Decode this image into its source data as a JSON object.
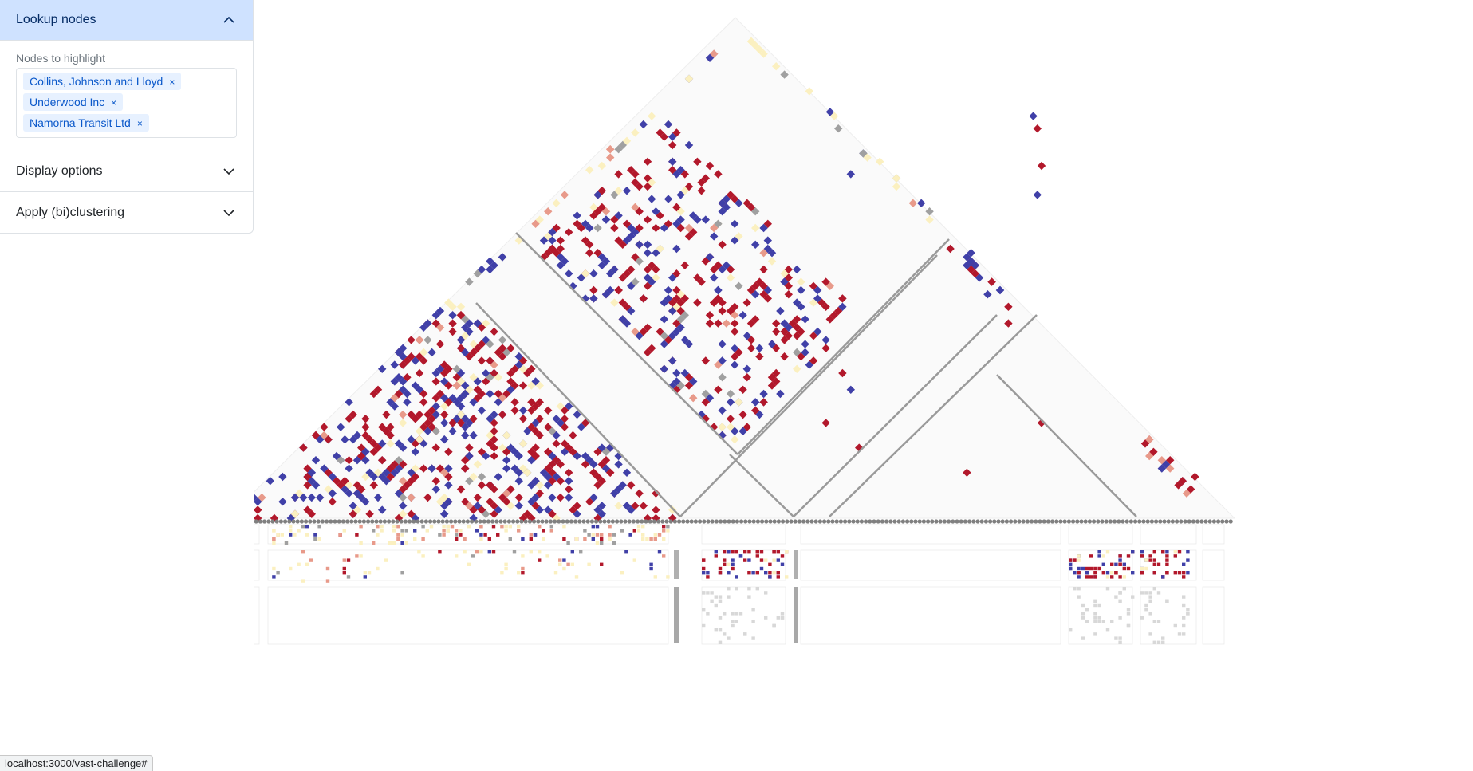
{
  "lookup": {
    "title": "Lookup nodes",
    "field_label": "Nodes to highlight",
    "tags": [
      "Collins, Johnson and Lloyd",
      "Underwood Inc",
      "Namorna Transit Ltd"
    ]
  },
  "display_options": {
    "title": "Display options"
  },
  "clustering": {
    "title": "Apply (bi)clustering"
  },
  "status_bar": {
    "url": "localhost:3000/vast-challenge#"
  },
  "colors": {
    "red": "#b2182b",
    "blue": "#4040a8",
    "light_red": "#e89a8a",
    "pale_yellow": "#fbf0c0",
    "gray": "#a0a0a0",
    "node": "#808080"
  }
}
